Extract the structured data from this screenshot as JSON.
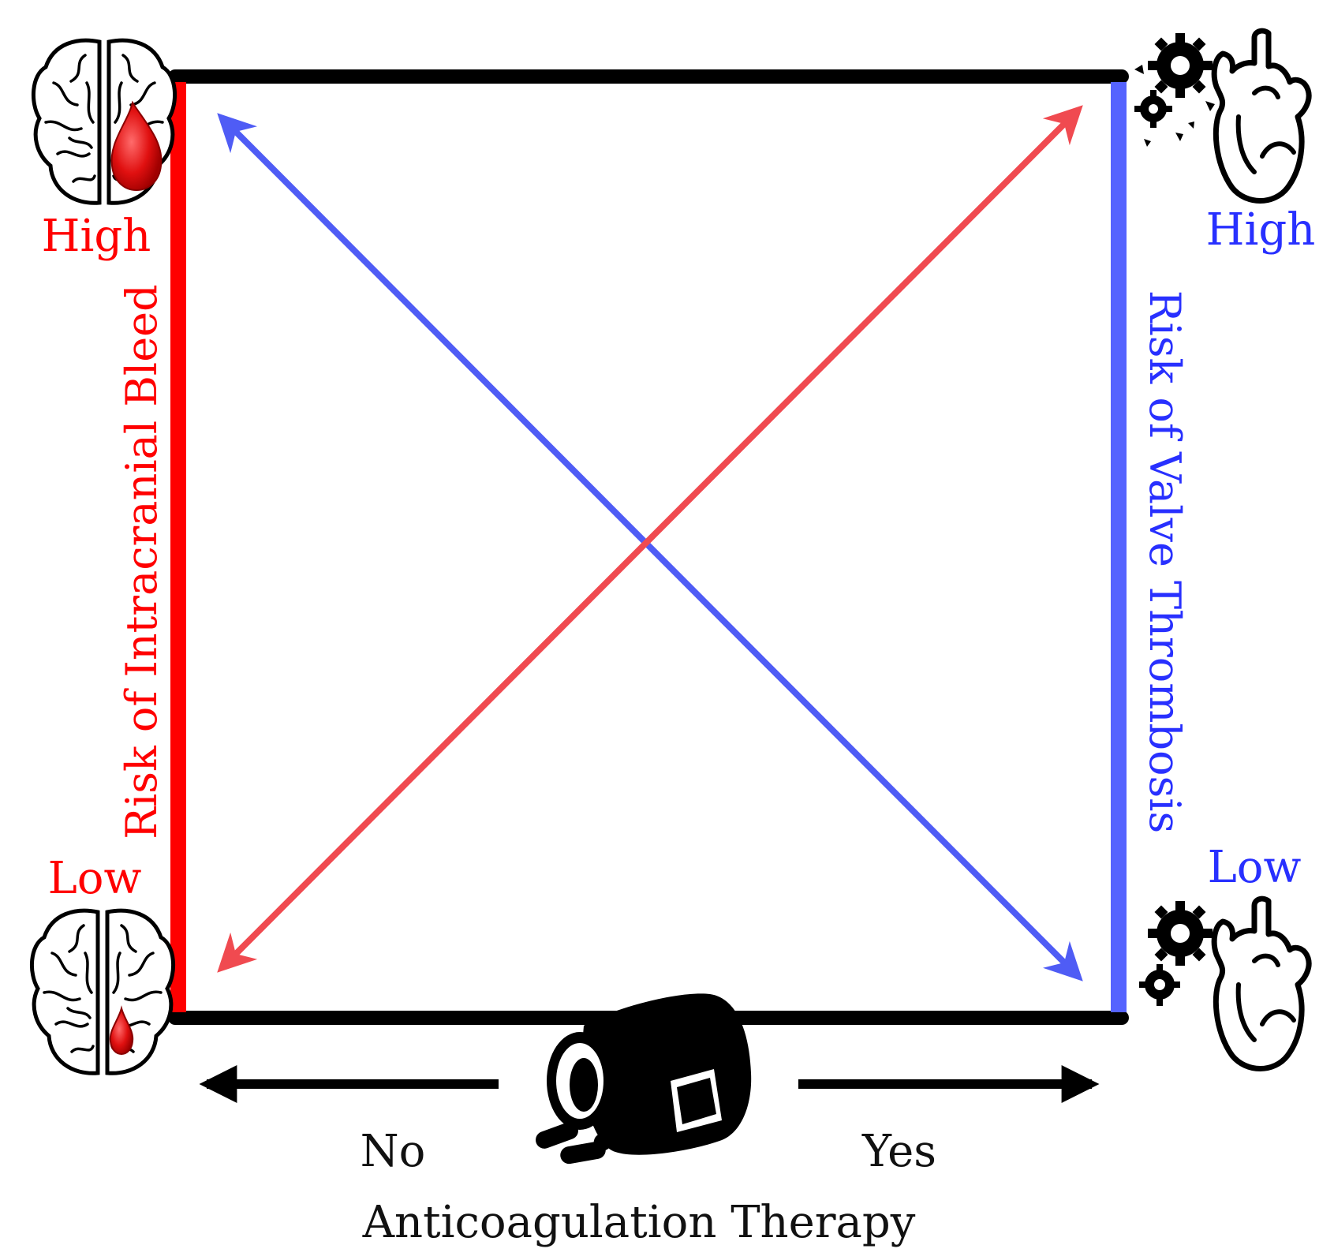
{
  "left_axis": {
    "label": "Risk of Intracranial Bleed",
    "high": "High",
    "low": "Low",
    "color": "#ff0000"
  },
  "right_axis": {
    "label": "Risk of Valve Thrombosis",
    "high": "High",
    "low": "Low",
    "color": "#5563ff"
  },
  "bottom_axis": {
    "label": "Anticoagulation Therapy",
    "no": "No",
    "yes": "Yes"
  },
  "arrows": {
    "bleed_color": "#f04a50",
    "thrombosis_color": "#4f5cf5"
  },
  "icons": {
    "top_left": "brain-bleed-large-icon",
    "bottom_left": "brain-bleed-small-icon",
    "top_right": "broken-gears-heart-icon",
    "bottom_right": "gears-heart-icon",
    "bottom_center": "pill-bottle-icon"
  }
}
